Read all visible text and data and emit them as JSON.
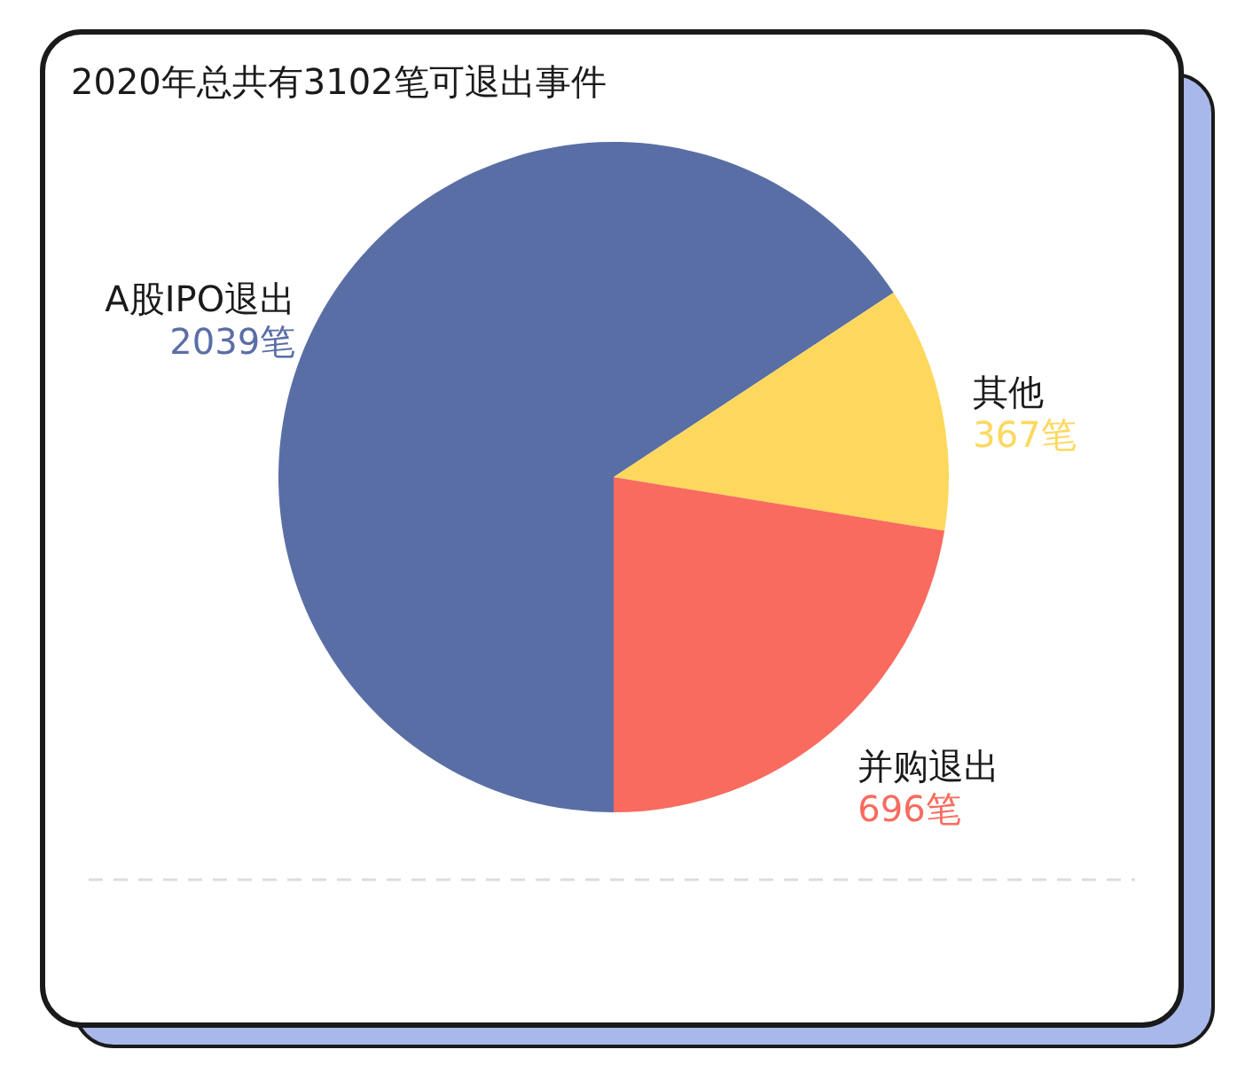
{
  "chart_data": {
    "type": "pie",
    "title": "2020年总共有3102笔可退出事件",
    "categories": [
      "A股IPO退出",
      "其他",
      "并购退出"
    ],
    "values": [
      2039,
      367,
      696
    ],
    "colors": [
      "#5a6ea6",
      "#fdd85d",
      "#f96b5f"
    ],
    "value_labels": [
      "2039笔",
      "367笔",
      "696笔"
    ]
  }
}
